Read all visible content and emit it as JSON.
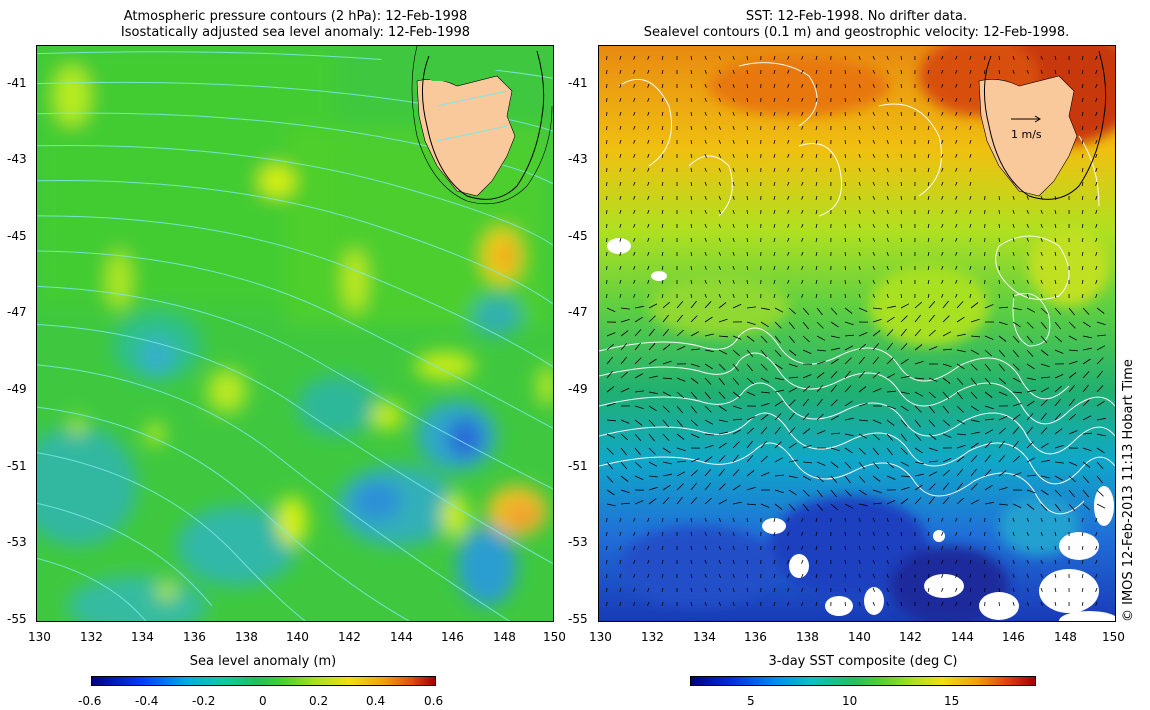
{
  "left_panel": {
    "title_line1": "Atmospheric pressure contours (2 hPa): 12-Feb-1998",
    "title_line2": "Isostatically adjusted sea level anomaly: 12-Feb-1998",
    "x_ticks": [
      "130",
      "132",
      "134",
      "136",
      "138",
      "140",
      "142",
      "144",
      "146",
      "148",
      "150"
    ],
    "y_ticks": [
      "-41",
      "-43",
      "-45",
      "-47",
      "-49",
      "-51",
      "-53",
      "-55"
    ],
    "colorbar": {
      "label": "Sea level anomaly (m)",
      "ticks": [
        "-0.6",
        "-0.4",
        "-0.2",
        "0",
        "0.2",
        "0.4",
        "0.6"
      ],
      "range": [
        -0.6,
        0.6
      ]
    },
    "contour_color": "#7fe8e8"
  },
  "right_panel": {
    "title_line1": "SST: 12-Feb-1998. No drifter data.",
    "title_line2": "Sealevel contours (0.1 m) and geostrophic velocity: 12-Feb-1998.",
    "x_ticks": [
      "130",
      "132",
      "134",
      "136",
      "138",
      "140",
      "142",
      "144",
      "146",
      "148",
      "150"
    ],
    "y_ticks": [
      "-41",
      "-43",
      "-45",
      "-47",
      "-49",
      "-51",
      "-53",
      "-55"
    ],
    "velocity_scale_label": "1 m/s",
    "colorbar": {
      "label": "3-day SST composite (deg C)",
      "ticks": [
        "5",
        "10",
        "15"
      ],
      "range": [
        2,
        19
      ]
    }
  },
  "credit": "© IMOS 12-Feb-2013 11:13 Hobart Time",
  "map_extent": {
    "lon": [
      130,
      150
    ],
    "lat": [
      -55,
      -40
    ]
  },
  "land_color": "#f9c89b",
  "land_label_color": "#f9c89b"
}
